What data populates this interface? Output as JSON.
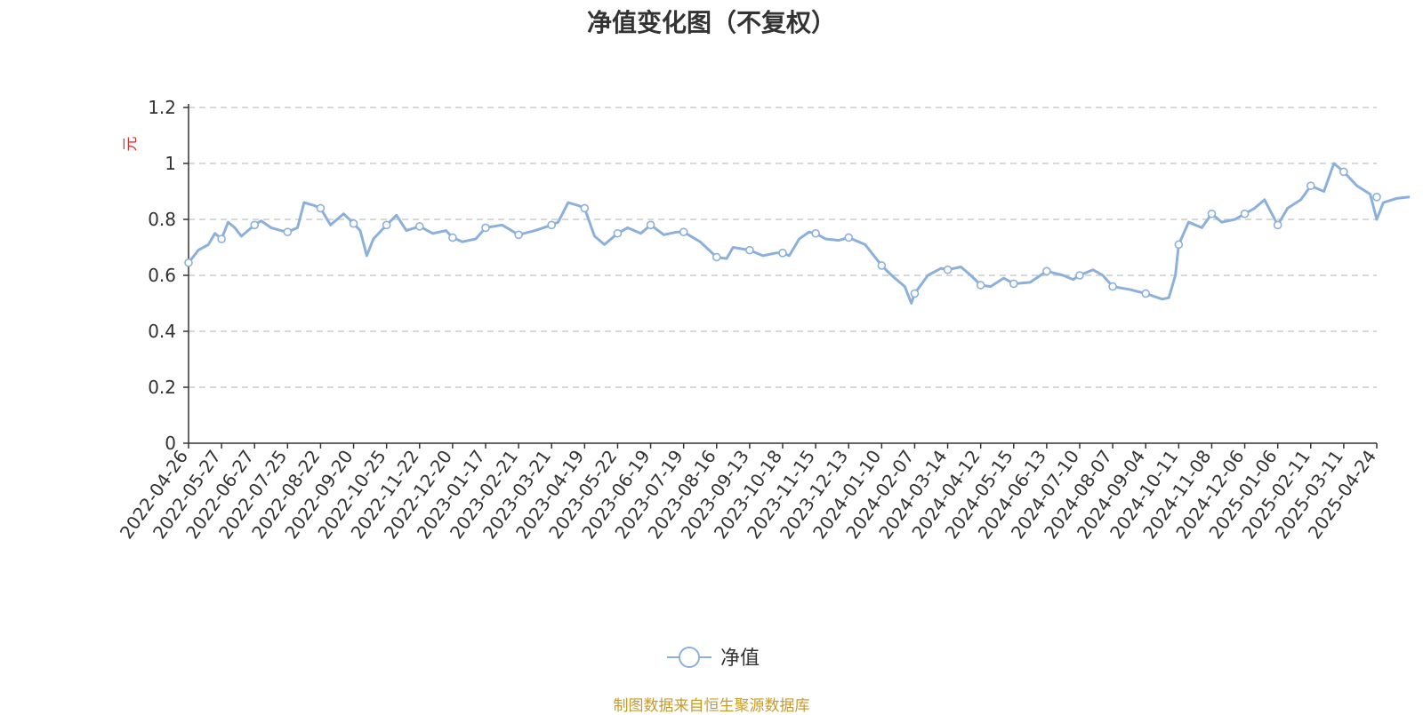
{
  "title": "净值变化图（不复权）",
  "source": "制图数据来自恒生聚源数据库",
  "colors": {
    "line": "#8cb0dc",
    "axis": "#333333",
    "grid": "#cccccc",
    "unit": "#e0302e",
    "source": "#c89a2a"
  },
  "chart_data": {
    "type": "line",
    "ylabel": "元",
    "ylim": [
      0,
      1.2
    ],
    "yticks": [
      "0",
      "0.2",
      "0.4",
      "0.6",
      "0.8",
      "1",
      "1.2"
    ],
    "grid": true,
    "legend": "bottom-center",
    "categories": [
      "2022-04-26",
      "2022-05-27",
      "2022-06-27",
      "2022-07-25",
      "2022-08-22",
      "2022-09-20",
      "2022-10-25",
      "2022-11-22",
      "2022-12-20",
      "2023-01-17",
      "2023-02-21",
      "2023-03-21",
      "2023-04-19",
      "2023-05-22",
      "2023-06-19",
      "2023-07-19",
      "2023-08-16",
      "2023-09-13",
      "2023-10-18",
      "2023-11-15",
      "2023-12-13",
      "2024-01-10",
      "2024-02-07",
      "2024-03-14",
      "2024-04-12",
      "2024-05-15",
      "2024-06-13",
      "2024-07-10",
      "2024-08-07",
      "2024-09-04",
      "2024-10-11",
      "2024-11-08",
      "2024-12-06",
      "2025-01-06",
      "2025-02-11",
      "2025-03-11",
      "2025-04-24"
    ],
    "series": [
      {
        "name": "净值",
        "values": [
          0.645,
          0.73,
          0.78,
          0.755,
          0.84,
          0.785,
          0.78,
          0.775,
          0.735,
          0.77,
          0.745,
          0.78,
          0.84,
          0.75,
          0.78,
          0.755,
          0.665,
          0.69,
          0.68,
          0.75,
          0.735,
          0.635,
          0.535,
          0.62,
          0.565,
          0.57,
          0.615,
          0.6,
          0.56,
          0.535,
          0.71,
          0.82,
          0.82,
          0.78,
          0.92,
          0.97,
          0.88
        ],
        "path": [
          [
            0,
            0.645
          ],
          [
            0.3,
            0.69
          ],
          [
            0.6,
            0.71
          ],
          [
            0.8,
            0.75
          ],
          [
            1,
            0.73
          ],
          [
            1.2,
            0.79
          ],
          [
            1.4,
            0.77
          ],
          [
            1.6,
            0.74
          ],
          [
            1.8,
            0.76
          ],
          [
            2,
            0.78
          ],
          [
            2.2,
            0.795
          ],
          [
            2.5,
            0.77
          ],
          [
            2.8,
            0.76
          ],
          [
            3,
            0.755
          ],
          [
            3.3,
            0.77
          ],
          [
            3.5,
            0.86
          ],
          [
            3.8,
            0.85
          ],
          [
            4,
            0.84
          ],
          [
            4.3,
            0.78
          ],
          [
            4.7,
            0.82
          ],
          [
            5,
            0.785
          ],
          [
            5.2,
            0.76
          ],
          [
            5.4,
            0.67
          ],
          [
            5.6,
            0.73
          ],
          [
            6,
            0.78
          ],
          [
            6.3,
            0.815
          ],
          [
            6.6,
            0.76
          ],
          [
            7,
            0.775
          ],
          [
            7.4,
            0.75
          ],
          [
            7.8,
            0.76
          ],
          [
            8,
            0.735
          ],
          [
            8.3,
            0.72
          ],
          [
            8.7,
            0.73
          ],
          [
            9,
            0.77
          ],
          [
            9.5,
            0.78
          ],
          [
            10,
            0.745
          ],
          [
            10.5,
            0.76
          ],
          [
            11,
            0.78
          ],
          [
            11.2,
            0.79
          ],
          [
            11.5,
            0.86
          ],
          [
            11.8,
            0.85
          ],
          [
            12,
            0.84
          ],
          [
            12.3,
            0.74
          ],
          [
            12.6,
            0.71
          ],
          [
            13,
            0.75
          ],
          [
            13.3,
            0.77
          ],
          [
            13.7,
            0.75
          ],
          [
            14,
            0.78
          ],
          [
            14.4,
            0.745
          ],
          [
            14.8,
            0.755
          ],
          [
            15,
            0.755
          ],
          [
            15.5,
            0.72
          ],
          [
            16,
            0.665
          ],
          [
            16.3,
            0.66
          ],
          [
            16.5,
            0.7
          ],
          [
            17,
            0.69
          ],
          [
            17.4,
            0.67
          ],
          [
            17.8,
            0.68
          ],
          [
            18,
            0.68
          ],
          [
            18.2,
            0.67
          ],
          [
            18.5,
            0.73
          ],
          [
            18.8,
            0.755
          ],
          [
            19,
            0.75
          ],
          [
            19.3,
            0.73
          ],
          [
            19.7,
            0.725
          ],
          [
            20,
            0.735
          ],
          [
            20.5,
            0.71
          ],
          [
            21,
            0.635
          ],
          [
            21.3,
            0.6
          ],
          [
            21.7,
            0.56
          ],
          [
            21.9,
            0.5
          ],
          [
            22,
            0.535
          ],
          [
            22.4,
            0.6
          ],
          [
            22.8,
            0.625
          ],
          [
            23,
            0.62
          ],
          [
            23.4,
            0.63
          ],
          [
            23.7,
            0.6
          ],
          [
            24,
            0.565
          ],
          [
            24.3,
            0.56
          ],
          [
            24.7,
            0.59
          ],
          [
            25,
            0.57
          ],
          [
            25.5,
            0.575
          ],
          [
            26,
            0.615
          ],
          [
            26.5,
            0.6
          ],
          [
            26.8,
            0.585
          ],
          [
            27,
            0.6
          ],
          [
            27.4,
            0.62
          ],
          [
            27.7,
            0.6
          ],
          [
            28,
            0.56
          ],
          [
            28.5,
            0.55
          ],
          [
            29,
            0.535
          ],
          [
            29.5,
            0.515
          ],
          [
            29.7,
            0.52
          ],
          [
            29.9,
            0.6
          ],
          [
            30,
            0.71
          ],
          [
            30.3,
            0.79
          ],
          [
            30.7,
            0.77
          ],
          [
            31,
            0.82
          ],
          [
            31.3,
            0.79
          ],
          [
            31.7,
            0.8
          ],
          [
            32,
            0.82
          ],
          [
            32.3,
            0.84
          ],
          [
            32.6,
            0.87
          ],
          [
            33,
            0.78
          ],
          [
            33.3,
            0.84
          ],
          [
            33.7,
            0.87
          ],
          [
            34,
            0.92
          ],
          [
            34.4,
            0.9
          ],
          [
            34.7,
            1
          ],
          [
            35,
            0.97
          ],
          [
            35.4,
            0.92
          ],
          [
            35.8,
            0.89
          ],
          [
            36,
            0.8
          ],
          [
            36.2,
            0.86
          ],
          [
            36.6,
            0.875
          ],
          [
            37,
            0.88
          ]
        ]
      }
    ]
  }
}
